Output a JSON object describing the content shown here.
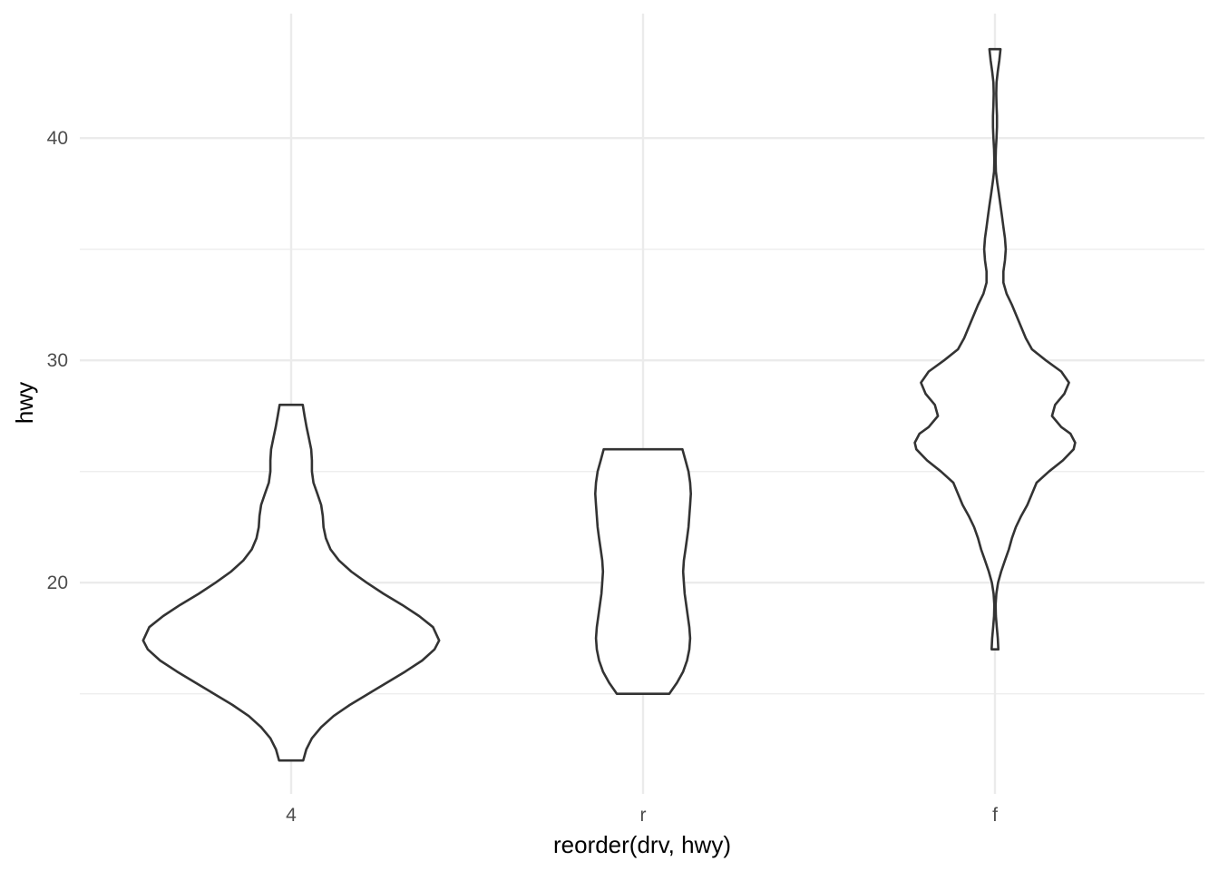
{
  "chart_data": {
    "type": "violin",
    "xlabel": "reorder(drv, hwy)",
    "ylabel": "hwy",
    "categories": [
      "4",
      "r",
      "f"
    ],
    "ylim": [
      10.5,
      45.6
    ],
    "y_ticks": [
      20,
      30,
      40
    ],
    "y_minor_ticks": [
      15,
      25,
      35
    ],
    "grid": true,
    "colors": {
      "outline": "#333333",
      "fill": "#ffffff",
      "grid": "#ebebeb"
    },
    "violins": [
      {
        "category": "4",
        "ymin": 12,
        "ymax": 28,
        "profile": [
          [
            12.0,
            0.078
          ],
          [
            12.5,
            0.098
          ],
          [
            13.0,
            0.135
          ],
          [
            13.5,
            0.195
          ],
          [
            14.0,
            0.275
          ],
          [
            14.5,
            0.38
          ],
          [
            15.0,
            0.5
          ],
          [
            15.5,
            0.62
          ],
          [
            16.0,
            0.74
          ],
          [
            16.5,
            0.85
          ],
          [
            17.0,
            0.93
          ],
          [
            17.4,
            0.96
          ],
          [
            18.0,
            0.92
          ],
          [
            18.5,
            0.83
          ],
          [
            19.0,
            0.72
          ],
          [
            19.5,
            0.6
          ],
          [
            20.0,
            0.49
          ],
          [
            20.5,
            0.39
          ],
          [
            21.0,
            0.31
          ],
          [
            21.5,
            0.255
          ],
          [
            22.0,
            0.225
          ],
          [
            22.5,
            0.21
          ],
          [
            23.0,
            0.205
          ],
          [
            23.5,
            0.195
          ],
          [
            24.0,
            0.17
          ],
          [
            24.5,
            0.145
          ],
          [
            25.0,
            0.135
          ],
          [
            25.5,
            0.135
          ],
          [
            26.0,
            0.13
          ],
          [
            26.5,
            0.115
          ],
          [
            27.0,
            0.1
          ],
          [
            27.5,
            0.087
          ],
          [
            28.0,
            0.075
          ]
        ]
      },
      {
        "category": "r",
        "ymin": 15,
        "ymax": 26,
        "profile": [
          [
            15.0,
            0.17
          ],
          [
            15.5,
            0.22
          ],
          [
            16.0,
            0.26
          ],
          [
            16.5,
            0.285
          ],
          [
            17.0,
            0.3
          ],
          [
            17.5,
            0.305
          ],
          [
            18.0,
            0.3
          ],
          [
            18.5,
            0.29
          ],
          [
            19.0,
            0.28
          ],
          [
            19.5,
            0.27
          ],
          [
            20.0,
            0.265
          ],
          [
            20.5,
            0.26
          ],
          [
            21.0,
            0.265
          ],
          [
            21.5,
            0.275
          ],
          [
            22.0,
            0.285
          ],
          [
            22.5,
            0.295
          ],
          [
            23.0,
            0.3
          ],
          [
            23.5,
            0.305
          ],
          [
            24.0,
            0.31
          ],
          [
            24.5,
            0.305
          ],
          [
            25.0,
            0.295
          ],
          [
            25.5,
            0.275
          ],
          [
            26.0,
            0.255
          ]
        ]
      },
      {
        "category": "f",
        "ymin": 17,
        "ymax": 44,
        "profile": [
          [
            17.0,
            0.022
          ],
          [
            17.5,
            0.018
          ],
          [
            18.0,
            0.012
          ],
          [
            18.5,
            0.006
          ],
          [
            19.0,
            0.004
          ],
          [
            19.5,
            0.009
          ],
          [
            20.0,
            0.02
          ],
          [
            20.5,
            0.04
          ],
          [
            21.0,
            0.065
          ],
          [
            21.5,
            0.09
          ],
          [
            22.0,
            0.11
          ],
          [
            22.5,
            0.135
          ],
          [
            23.0,
            0.17
          ],
          [
            23.5,
            0.21
          ],
          [
            24.0,
            0.24
          ],
          [
            24.5,
            0.27
          ],
          [
            25.0,
            0.35
          ],
          [
            25.5,
            0.44
          ],
          [
            26.0,
            0.51
          ],
          [
            26.3,
            0.52
          ],
          [
            26.7,
            0.49
          ],
          [
            27.0,
            0.43
          ],
          [
            27.5,
            0.37
          ],
          [
            28.0,
            0.39
          ],
          [
            28.5,
            0.45
          ],
          [
            29.0,
            0.48
          ],
          [
            29.5,
            0.43
          ],
          [
            30.0,
            0.33
          ],
          [
            30.5,
            0.24
          ],
          [
            31.0,
            0.2
          ],
          [
            31.5,
            0.17
          ],
          [
            32.0,
            0.14
          ],
          [
            32.5,
            0.11
          ],
          [
            33.0,
            0.075
          ],
          [
            33.5,
            0.055
          ],
          [
            34.0,
            0.055
          ],
          [
            34.5,
            0.065
          ],
          [
            35.0,
            0.07
          ],
          [
            35.5,
            0.065
          ],
          [
            36.0,
            0.055
          ],
          [
            36.5,
            0.045
          ],
          [
            37.0,
            0.035
          ],
          [
            37.5,
            0.025
          ],
          [
            38.0,
            0.015
          ],
          [
            38.5,
            0.006
          ],
          [
            39.0,
            0.004
          ],
          [
            39.5,
            0.006
          ],
          [
            40.0,
            0.01
          ],
          [
            40.5,
            0.013
          ],
          [
            41.0,
            0.013
          ],
          [
            41.5,
            0.01
          ],
          [
            42.0,
            0.008
          ],
          [
            42.5,
            0.01
          ],
          [
            43.0,
            0.018
          ],
          [
            43.5,
            0.028
          ],
          [
            44.0,
            0.036
          ]
        ]
      }
    ]
  }
}
